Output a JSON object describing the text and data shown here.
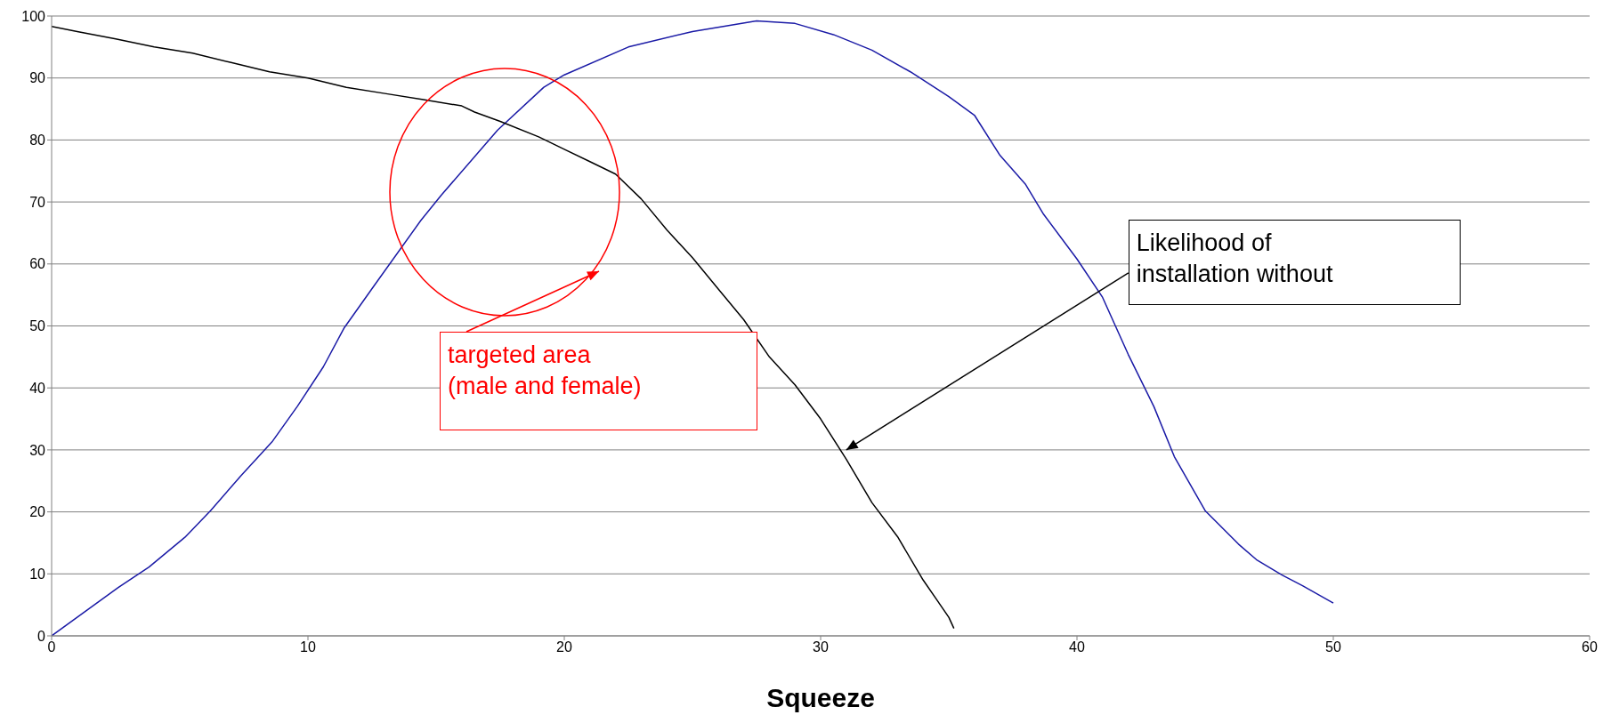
{
  "chart_data": {
    "type": "line",
    "xlabel": "Squeeze",
    "xlim": [
      0,
      60
    ],
    "xticks": [
      0,
      10,
      20,
      30,
      40,
      50,
      60
    ],
    "ylim": [
      0,
      100
    ],
    "yticks": [
      0,
      10,
      20,
      30,
      40,
      50,
      60,
      70,
      80,
      90,
      100
    ],
    "grid": "y",
    "marker": "none",
    "line_style": "solid",
    "series": [
      {
        "color": "#1a1aa6",
        "x": [
          0,
          1.2,
          2.6,
          3.8,
          5.2,
          6.2,
          7.4,
          8.6,
          9.6,
          10.6,
          11.4,
          12.6,
          14.4,
          15.2,
          17.4,
          19.2,
          20,
          22.5,
          25,
          27.5,
          29,
          30.5,
          32,
          33.5,
          35,
          36,
          37,
          38,
          38.7,
          40,
          41,
          42,
          43,
          43.8,
          45,
          46.3,
          47,
          48,
          48.8,
          50
        ],
        "values": [
          0,
          3.6,
          7.8,
          11.1,
          15.9,
          20.2,
          25.9,
          31.3,
          37.1,
          43.4,
          49.6,
          56.6,
          67,
          71.1,
          81.6,
          88.5,
          90.5,
          95,
          97.5,
          99.2,
          98.8,
          97,
          94.5,
          91,
          87,
          84,
          77.5,
          72.8,
          68,
          60.8,
          54.6,
          45.4,
          37,
          28.9,
          20.2,
          14.8,
          12.3,
          9.8,
          8.1,
          5.3
        ]
      },
      {
        "color": "#000000",
        "x": [
          0,
          1,
          2.5,
          4,
          5.5,
          7,
          8.5,
          10,
          11.5,
          13,
          14.5,
          16,
          16.5,
          17.5,
          19,
          20,
          21,
          22,
          23,
          24,
          25,
          26,
          27,
          28,
          29,
          30,
          31,
          32,
          33,
          34,
          34.5,
          35,
          35.2
        ],
        "values": [
          98.3,
          97.5,
          96.3,
          95,
          94,
          92.5,
          91,
          90,
          88.5,
          87.5,
          86.5,
          85.5,
          84.5,
          83,
          80.5,
          78.5,
          76.5,
          74.5,
          70.5,
          65.5,
          61,
          56,
          51,
          45,
          40.5,
          35,
          28.5,
          21.5,
          16,
          9,
          6,
          3,
          1.2
        ]
      }
    ],
    "annotations": [
      "targeted area\n(male and female)",
      {
        "text": "Likelihood of\ninstallation without",
        "x": 31,
        "y": 30
      }
    ]
  }
}
